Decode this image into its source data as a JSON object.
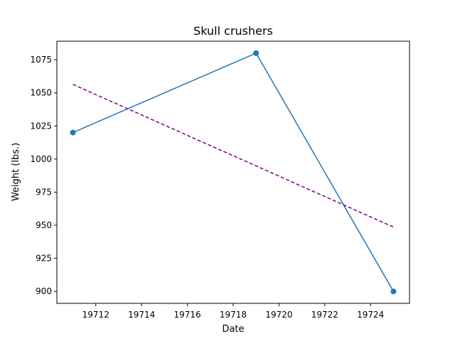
{
  "chart_data": {
    "type": "line",
    "title": "Skull crushers",
    "xlabel": "Date",
    "ylabel": "Weight (lbs.)",
    "xlim": [
      19710.3,
      19725.7
    ],
    "ylim": [
      891,
      1089
    ],
    "x_ticks": [
      19712,
      19714,
      19716,
      19718,
      19720,
      19722,
      19724
    ],
    "y_ticks": [
      900,
      925,
      950,
      975,
      1000,
      1025,
      1050,
      1075
    ],
    "grid": false,
    "series": [
      {
        "x": [
          19711,
          19719,
          19725
        ],
        "y": [
          1020,
          1080,
          900
        ],
        "color": "#1f77b4",
        "style": "solid",
        "marker": "circle"
      },
      {
        "x": [
          19711,
          19725
        ],
        "y": [
          1056.4,
          948.6
        ],
        "color": "#800080",
        "style": "dashed",
        "marker": "none"
      }
    ]
  }
}
